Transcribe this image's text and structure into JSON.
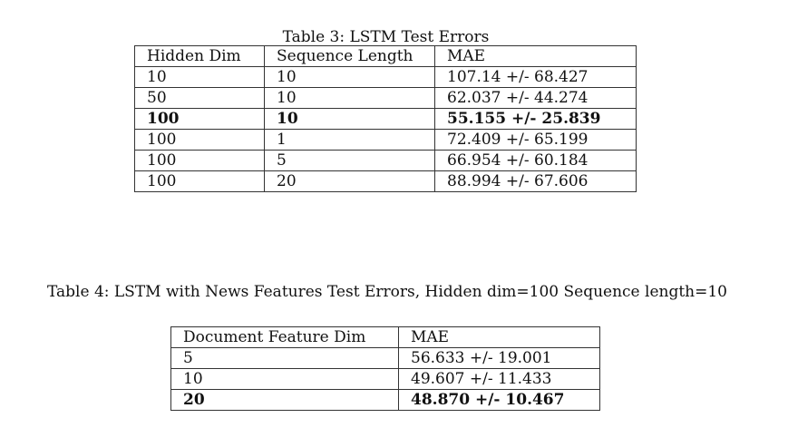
{
  "table3": {
    "caption": "Table 3: LSTM Test Errors",
    "headers": [
      "Hidden Dim",
      "Sequence Length",
      "MAE"
    ],
    "rows": [
      {
        "hidden_dim": "10",
        "seq_len": "10",
        "mae": "107.14 +/- 68.427",
        "bold": false
      },
      {
        "hidden_dim": "50",
        "seq_len": "10",
        "mae": "62.037 +/- 44.274",
        "bold": false
      },
      {
        "hidden_dim": "100",
        "seq_len": "10",
        "mae": "55.155 +/- 25.839",
        "bold": true
      },
      {
        "hidden_dim": "100",
        "seq_len": "1",
        "mae": "72.409 +/- 65.199",
        "bold": false
      },
      {
        "hidden_dim": "100",
        "seq_len": "5",
        "mae": "66.954 +/- 60.184",
        "bold": false
      },
      {
        "hidden_dim": "100",
        "seq_len": "20",
        "mae": "88.994 +/- 67.606",
        "bold": false
      }
    ]
  },
  "table4": {
    "caption": "Table 4: LSTM with News Features Test Errors, Hidden dim=100 Sequence length=10",
    "headers": [
      "Document Feature Dim",
      "MAE"
    ],
    "rows": [
      {
        "doc_dim": "5",
        "mae": "56.633 +/- 19.001",
        "bold": false
      },
      {
        "doc_dim": "10",
        "mae": "49.607 +/- 11.433",
        "bold": false
      },
      {
        "doc_dim": "20",
        "mae": "48.870 +/- 10.467",
        "bold": true
      }
    ]
  }
}
